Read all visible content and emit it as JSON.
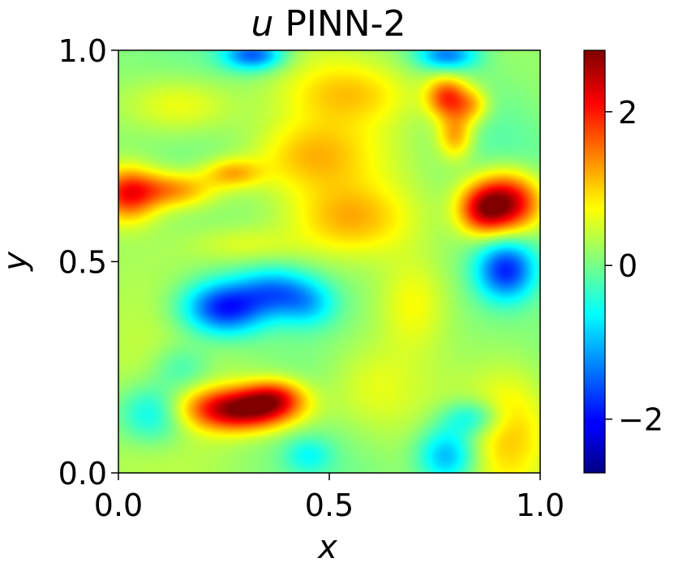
{
  "chart_data": {
    "type": "heatmap",
    "title": {
      "var": "u",
      "rest": " PINN-2"
    },
    "xlabel": "x",
    "ylabel": "y",
    "xlim": [
      0.0,
      1.0
    ],
    "ylim": [
      0.0,
      1.0
    ],
    "x_ticks": [
      "0.0",
      "0.5",
      "1.0"
    ],
    "y_ticks": [
      "0.0",
      "0.5",
      "1.0"
    ],
    "colormap": "jet",
    "colorbar": {
      "min": -2.7,
      "max": 2.8,
      "ticks": [
        {
          "value": 2,
          "label": "2"
        },
        {
          "value": 0,
          "label": "0"
        },
        {
          "value": -2,
          "label": "−2"
        }
      ]
    },
    "features": [
      {
        "x": 0.02,
        "y": 0.66,
        "sx": 0.05,
        "sy": 0.045,
        "value": 1.7
      },
      {
        "x": 0.13,
        "y": 0.67,
        "sx": 0.07,
        "sy": 0.03,
        "value": 1.2
      },
      {
        "x": 0.27,
        "y": 0.71,
        "sx": 0.05,
        "sy": 0.025,
        "value": 1.0
      },
      {
        "x": 0.29,
        "y": 0.15,
        "sx": 0.09,
        "sy": 0.035,
        "value": 2.6
      },
      {
        "x": 0.37,
        "y": 0.18,
        "sx": 0.05,
        "sy": 0.03,
        "value": 1.3
      },
      {
        "x": 0.25,
        "y": 0.39,
        "sx": 0.07,
        "sy": 0.045,
        "value": -2.1
      },
      {
        "x": 0.37,
        "y": 0.43,
        "sx": 0.06,
        "sy": 0.04,
        "value": -1.2
      },
      {
        "x": 0.45,
        "y": 0.4,
        "sx": 0.05,
        "sy": 0.04,
        "value": -0.9
      },
      {
        "x": 0.92,
        "y": 0.64,
        "sx": 0.06,
        "sy": 0.05,
        "value": 2.6
      },
      {
        "x": 0.86,
        "y": 0.62,
        "sx": 0.04,
        "sy": 0.04,
        "value": 1.2
      },
      {
        "x": 0.92,
        "y": 0.48,
        "sx": 0.05,
        "sy": 0.05,
        "value": -1.9
      },
      {
        "x": 0.78,
        "y": 0.89,
        "sx": 0.035,
        "sy": 0.035,
        "value": 1.7
      },
      {
        "x": 0.8,
        "y": 0.8,
        "sx": 0.03,
        "sy": 0.04,
        "value": 1.2
      },
      {
        "x": 0.84,
        "y": 0.87,
        "sx": 0.03,
        "sy": 0.03,
        "value": 0.9
      },
      {
        "x": 0.32,
        "y": 0.99,
        "sx": 0.05,
        "sy": 0.025,
        "value": -1.6
      },
      {
        "x": 0.78,
        "y": 0.99,
        "sx": 0.05,
        "sy": 0.025,
        "value": -1.4
      },
      {
        "x": 0.08,
        "y": 0.14,
        "sx": 0.06,
        "sy": 0.05,
        "value": -1.1
      },
      {
        "x": 0.15,
        "y": 0.25,
        "sx": 0.05,
        "sy": 0.04,
        "value": -0.6
      },
      {
        "x": 0.78,
        "y": 0.04,
        "sx": 0.05,
        "sy": 0.05,
        "value": -1.4
      },
      {
        "x": 0.84,
        "y": 0.13,
        "sx": 0.05,
        "sy": 0.03,
        "value": -0.9
      },
      {
        "x": 0.45,
        "y": 0.04,
        "sx": 0.04,
        "sy": 0.03,
        "value": -0.6
      },
      {
        "x": 0.55,
        "y": 0.6,
        "sx": 0.1,
        "sy": 0.06,
        "value": 0.9
      },
      {
        "x": 0.45,
        "y": 0.75,
        "sx": 0.1,
        "sy": 0.06,
        "value": 0.8
      },
      {
        "x": 0.15,
        "y": 0.87,
        "sx": 0.1,
        "sy": 0.05,
        "value": 0.7
      },
      {
        "x": 0.55,
        "y": 0.9,
        "sx": 0.12,
        "sy": 0.05,
        "value": 0.6
      },
      {
        "x": 0.6,
        "y": 0.2,
        "sx": 0.08,
        "sy": 0.08,
        "value": 0.5
      },
      {
        "x": 0.7,
        "y": 0.4,
        "sx": 0.06,
        "sy": 0.08,
        "value": 0.6
      },
      {
        "x": 0.93,
        "y": 0.1,
        "sx": 0.06,
        "sy": 0.1,
        "value": 0.6
      },
      {
        "x": 0.3,
        "y": 0.54,
        "sx": 0.09,
        "sy": 0.03,
        "value": 0.4
      }
    ]
  }
}
